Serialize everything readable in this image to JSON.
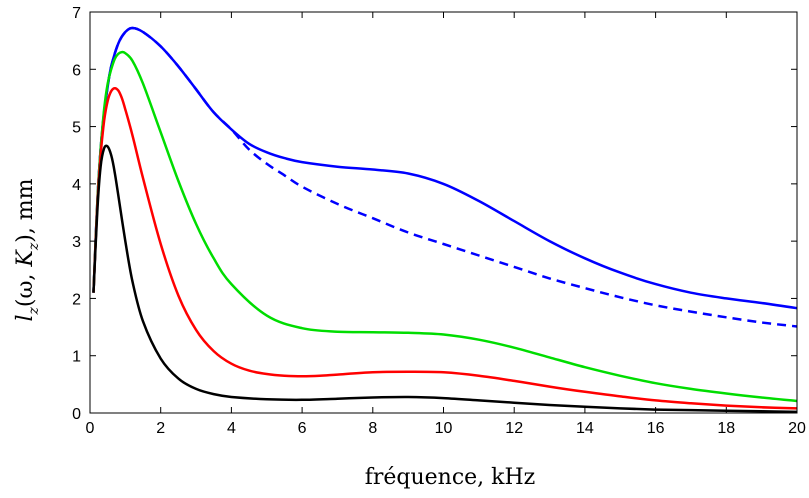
{
  "chart_data": {
    "type": "line",
    "xlabel": "fréquence, kHz",
    "ylabel": "l_z(ω, K_z), mm",
    "ylabel_parts": {
      "base": "l",
      "base_sub": "z",
      "open": "(ω, ",
      "k": "K",
      "k_sub": "z",
      "close": "), mm"
    },
    "xlim": [
      0,
      20
    ],
    "ylim": [
      0,
      7
    ],
    "xticks": [
      0,
      2,
      4,
      6,
      8,
      10,
      12,
      14,
      16,
      18,
      20
    ],
    "yticks": [
      0,
      1,
      2,
      3,
      4,
      5,
      6,
      7
    ],
    "grid": false,
    "series": [
      {
        "color": "#0000ff",
        "style": "solid",
        "x": [
          0.1,
          0.2,
          0.3,
          0.4,
          0.5,
          0.6,
          0.8,
          1.0,
          1.2,
          1.5,
          2.0,
          2.5,
          3.0,
          3.5,
          4.0,
          4.5,
          5.0,
          5.5,
          6.0,
          7.0,
          8.0,
          9.0,
          10.0,
          11.0,
          12.0,
          13.0,
          14.0,
          15.0,
          16.0,
          17.0,
          18.0,
          19.0,
          20.0
        ],
        "y": [
          2.1,
          3.6,
          4.6,
          5.25,
          5.7,
          6.05,
          6.45,
          6.65,
          6.72,
          6.65,
          6.4,
          6.05,
          5.65,
          5.25,
          4.95,
          4.7,
          4.55,
          4.45,
          4.38,
          4.3,
          4.25,
          4.18,
          4.0,
          3.7,
          3.35,
          3.0,
          2.7,
          2.45,
          2.25,
          2.1,
          2.0,
          1.92,
          1.83
        ]
      },
      {
        "color": "#0000ff",
        "style": "dashed",
        "x": [
          0.1,
          0.2,
          0.3,
          0.4,
          0.5,
          0.6,
          0.8,
          1.0,
          1.2,
          1.5,
          2.0,
          2.5,
          3.0,
          3.5,
          4.0,
          4.5,
          5.0,
          5.5,
          6.0,
          7.0,
          8.0,
          9.0,
          10.0,
          11.0,
          12.0,
          13.0,
          14.0,
          15.0,
          16.0,
          17.0,
          18.0,
          19.0,
          20.0
        ],
        "y": [
          2.1,
          3.6,
          4.6,
          5.25,
          5.7,
          6.05,
          6.45,
          6.65,
          6.72,
          6.65,
          6.4,
          6.05,
          5.65,
          5.25,
          4.95,
          4.6,
          4.35,
          4.15,
          3.95,
          3.65,
          3.4,
          3.15,
          2.95,
          2.75,
          2.55,
          2.35,
          2.18,
          2.02,
          1.88,
          1.77,
          1.67,
          1.58,
          1.51
        ]
      },
      {
        "color": "#00dd00",
        "style": "solid",
        "x": [
          0.1,
          0.2,
          0.3,
          0.4,
          0.5,
          0.6,
          0.7,
          0.8,
          0.9,
          1.0,
          1.2,
          1.5,
          2.0,
          2.5,
          3.0,
          3.5,
          4.0,
          5.0,
          6.0,
          7.0,
          8.0,
          9.0,
          10.0,
          11.0,
          12.0,
          13.0,
          14.0,
          15.0,
          16.0,
          17.0,
          18.0,
          19.0,
          20.0
        ],
        "y": [
          2.1,
          3.6,
          4.6,
          5.3,
          5.75,
          6.0,
          6.18,
          6.27,
          6.3,
          6.28,
          6.15,
          5.75,
          4.9,
          4.05,
          3.3,
          2.7,
          2.25,
          1.7,
          1.48,
          1.42,
          1.41,
          1.4,
          1.37,
          1.28,
          1.14,
          0.97,
          0.8,
          0.65,
          0.52,
          0.42,
          0.34,
          0.27,
          0.21
        ]
      },
      {
        "color": "#ff0000",
        "style": "solid",
        "x": [
          0.1,
          0.2,
          0.3,
          0.4,
          0.5,
          0.6,
          0.7,
          0.8,
          0.9,
          1.0,
          1.2,
          1.5,
          2.0,
          2.5,
          3.0,
          3.5,
          4.0,
          4.5,
          5.0,
          5.5,
          6.0,
          6.5,
          7.0,
          8.0,
          9.0,
          10.0,
          11.0,
          12.0,
          13.0,
          14.0,
          15.0,
          16.0,
          17.0,
          18.0,
          19.0,
          20.0
        ],
        "y": [
          2.1,
          3.55,
          4.5,
          5.1,
          5.45,
          5.62,
          5.67,
          5.63,
          5.5,
          5.3,
          4.85,
          4.1,
          2.95,
          2.05,
          1.45,
          1.08,
          0.86,
          0.74,
          0.68,
          0.65,
          0.64,
          0.65,
          0.67,
          0.71,
          0.72,
          0.71,
          0.65,
          0.56,
          0.46,
          0.37,
          0.29,
          0.22,
          0.17,
          0.13,
          0.1,
          0.08
        ]
      },
      {
        "color": "#000000",
        "style": "solid",
        "x": [
          0.1,
          0.2,
          0.3,
          0.4,
          0.5,
          0.6,
          0.7,
          0.8,
          1.0,
          1.2,
          1.5,
          2.0,
          2.5,
          3.0,
          3.5,
          4.0,
          5.0,
          6.0,
          7.0,
          8.0,
          9.0,
          10.0,
          11.0,
          12.0,
          13.0,
          14.0,
          15.0,
          16.0,
          17.0,
          18.0,
          19.0,
          20.0
        ],
        "y": [
          2.1,
          3.45,
          4.3,
          4.62,
          4.65,
          4.5,
          4.2,
          3.8,
          3.0,
          2.3,
          1.6,
          0.95,
          0.6,
          0.42,
          0.33,
          0.28,
          0.24,
          0.23,
          0.25,
          0.27,
          0.28,
          0.26,
          0.22,
          0.18,
          0.14,
          0.11,
          0.08,
          0.06,
          0.05,
          0.04,
          0.03,
          0.02
        ]
      }
    ]
  }
}
